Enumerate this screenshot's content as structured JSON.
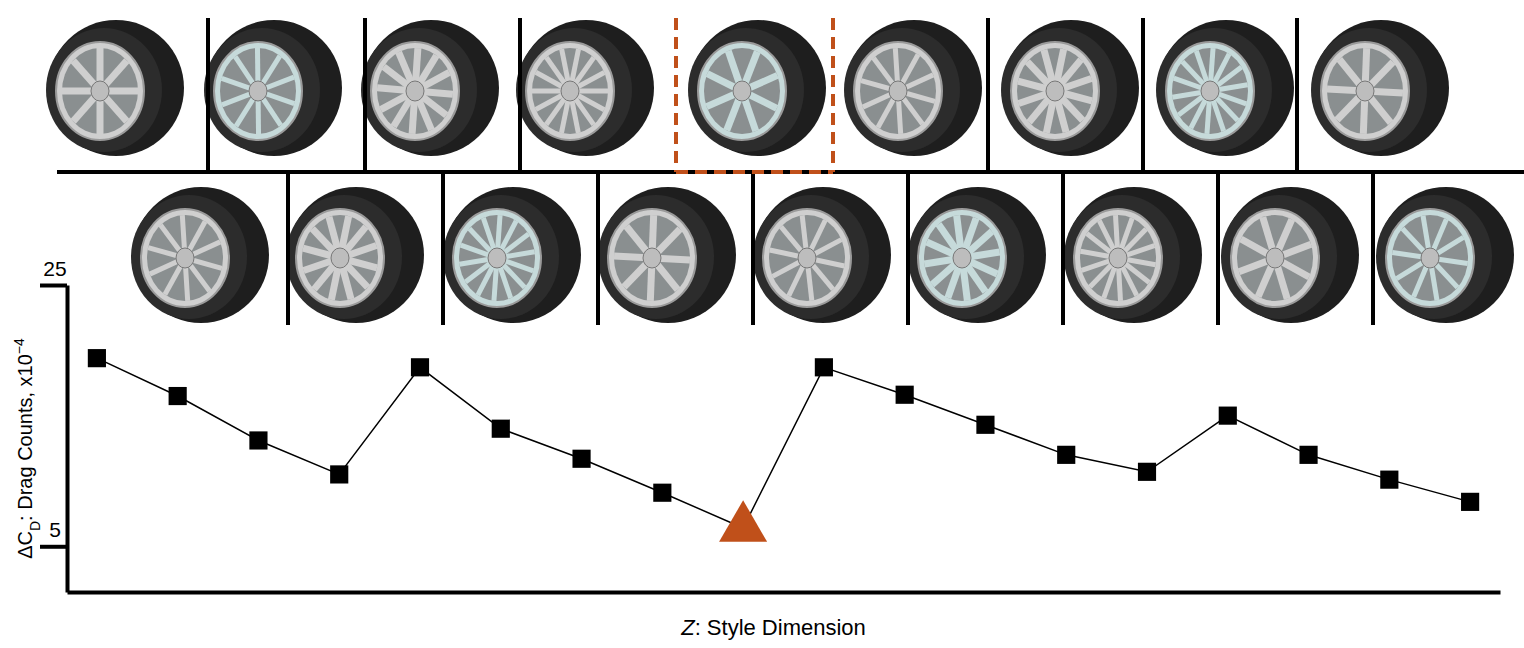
{
  "chart_data": {
    "type": "line",
    "x_label": [
      "Z",
      ": Style Dimension"
    ],
    "y_label": [
      "ΔC",
      "D",
      ": Drag Counts, x10",
      "−4"
    ],
    "categories": [
      null,
      null,
      null,
      null,
      null,
      null,
      null,
      null,
      null,
      null,
      null,
      null,
      null,
      null,
      null,
      null,
      null,
      null
    ],
    "values": [
      19.4,
      16.5,
      13.1,
      10.5,
      18.7,
      14.0,
      11.7,
      9.1,
      6.4,
      18.7,
      16.6,
      14.3,
      12.0,
      10.7,
      15.0,
      12.0,
      10.1,
      8.4
    ],
    "color": "#000000",
    "marker": "square",
    "line_style": "solid",
    "highlight": {
      "index": 8,
      "marker": "triangle",
      "color": "#c0501a"
    },
    "ylim": [
      1.5,
      25
    ],
    "yticks": [
      5,
      25
    ],
    "grid": false,
    "tick_labels": "y"
  }
}
